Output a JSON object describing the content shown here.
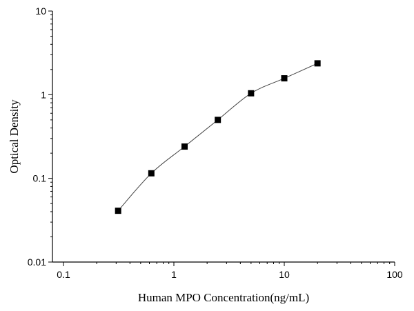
{
  "chart_data": {
    "type": "scatter",
    "xlabel": "Human MPO  Concentration(ng/mL)",
    "ylabel": "Optical Density",
    "xscale": "log",
    "yscale": "log",
    "xlim": [
      0.1,
      100
    ],
    "ylim": [
      0.01,
      10
    ],
    "x_ticks": [
      "0.1",
      "1",
      "10",
      "100"
    ],
    "y_ticks": [
      "0.01",
      "0.1",
      "1",
      "10"
    ],
    "grid": false,
    "series": [
      {
        "x": [
          0.3125,
          0.625,
          1.25,
          2.5,
          5,
          10,
          20
        ],
        "y": [
          0.041,
          0.115,
          0.24,
          0.5,
          1.04,
          1.57,
          2.37
        ],
        "marker": "square",
        "line": "smooth fit"
      }
    ],
    "colors": {
      "marker": "#000000",
      "curve": "#444444",
      "axes": "#000000"
    }
  }
}
